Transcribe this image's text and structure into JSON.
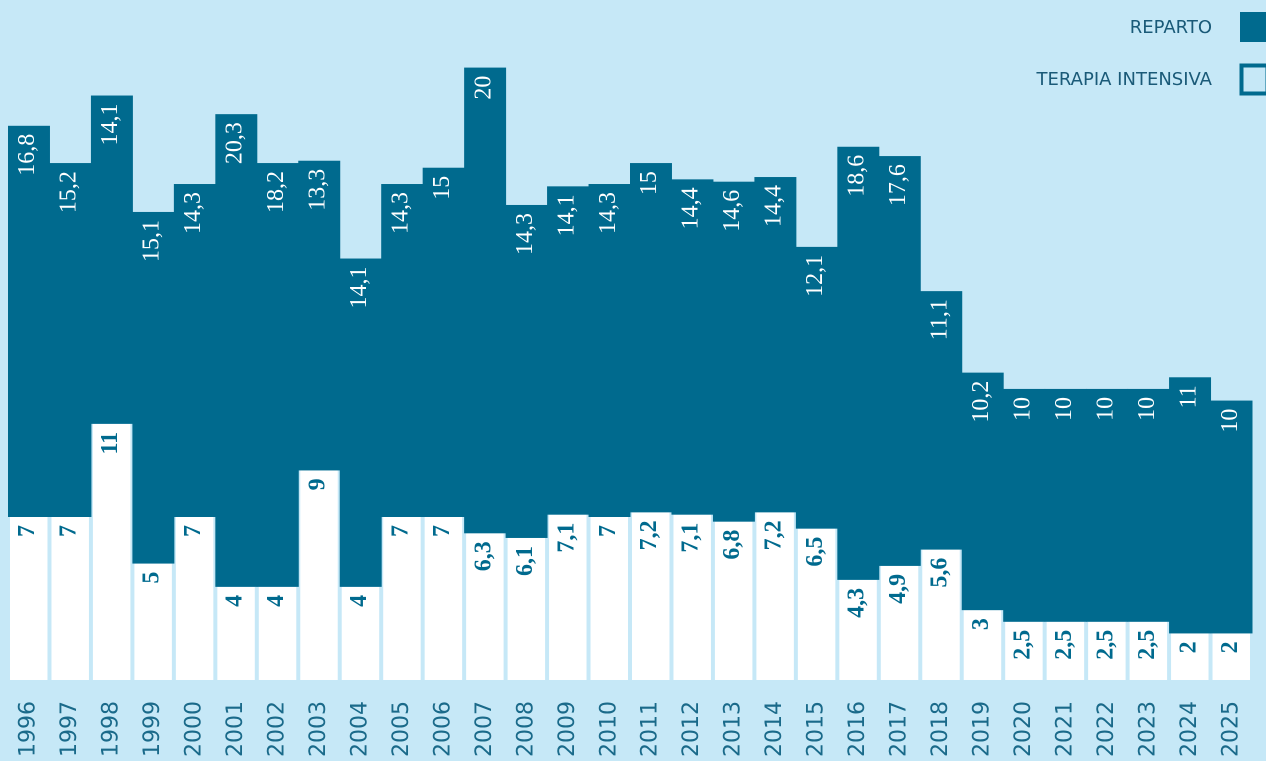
{
  "chart_data": {
    "type": "stacked_bar",
    "categories": [
      "1996",
      "1997",
      "1998",
      "1999",
      "2000",
      "2001",
      "2002",
      "2003",
      "2004",
      "2005",
      "2006",
      "2007",
      "2008",
      "2009",
      "2010",
      "2011",
      "2012",
      "2013",
      "2014",
      "2015",
      "2016",
      "2017",
      "2018",
      "2019",
      "2020",
      "2021",
      "2022",
      "2023",
      "2024",
      "2025"
    ],
    "series": [
      {
        "name": "TERAPIA INTENSIVA",
        "color": "#ffffff",
        "values": [
          7,
          7,
          11,
          5,
          7,
          4,
          4,
          9,
          4,
          7,
          7,
          6.3,
          6.1,
          7.1,
          7,
          7.2,
          7.1,
          6.8,
          7.2,
          6.5,
          4.3,
          4.9,
          5.6,
          3,
          2.5,
          2.5,
          2.5,
          2.5,
          2,
          2
        ],
        "value_labels": [
          "7",
          "7",
          "11",
          "5",
          "7",
          "4",
          "4",
          "9",
          "4",
          "7",
          "7",
          "6,3",
          "6,1",
          "7,1",
          "7",
          "7,2",
          "7,1",
          "6,8",
          "7,2",
          "6,5",
          "4,3",
          "4,9",
          "5,6",
          "3",
          "2,5",
          "2,5",
          "2,5",
          "2,5",
          "2",
          "2"
        ]
      },
      {
        "name": "REPARTO",
        "color": "#006a8e",
        "values": [
          16.8,
          15.2,
          14.1,
          15.1,
          14.3,
          20.3,
          18.2,
          13.3,
          14.1,
          14.3,
          15,
          20,
          14.3,
          14.1,
          14.3,
          15,
          14.4,
          14.6,
          14.4,
          12.1,
          18.6,
          17.6,
          11.1,
          10.2,
          10,
          10,
          10,
          10,
          11,
          10
        ],
        "value_labels": [
          "16,8",
          "15,2",
          "14,1",
          "15,1",
          "14,3",
          "20,3",
          "18,2",
          "13,3",
          "14,1",
          "14,3",
          "15",
          "20",
          "14,3",
          "14,1",
          "14,3",
          "15",
          "14,4",
          "14,6",
          "14,4",
          "12,1",
          "18,6",
          "17,6",
          "11,1",
          "10,2",
          "10",
          "10",
          "10",
          "10",
          "11",
          "10"
        ]
      }
    ],
    "ylim": [
      0,
      28
    ]
  }
}
